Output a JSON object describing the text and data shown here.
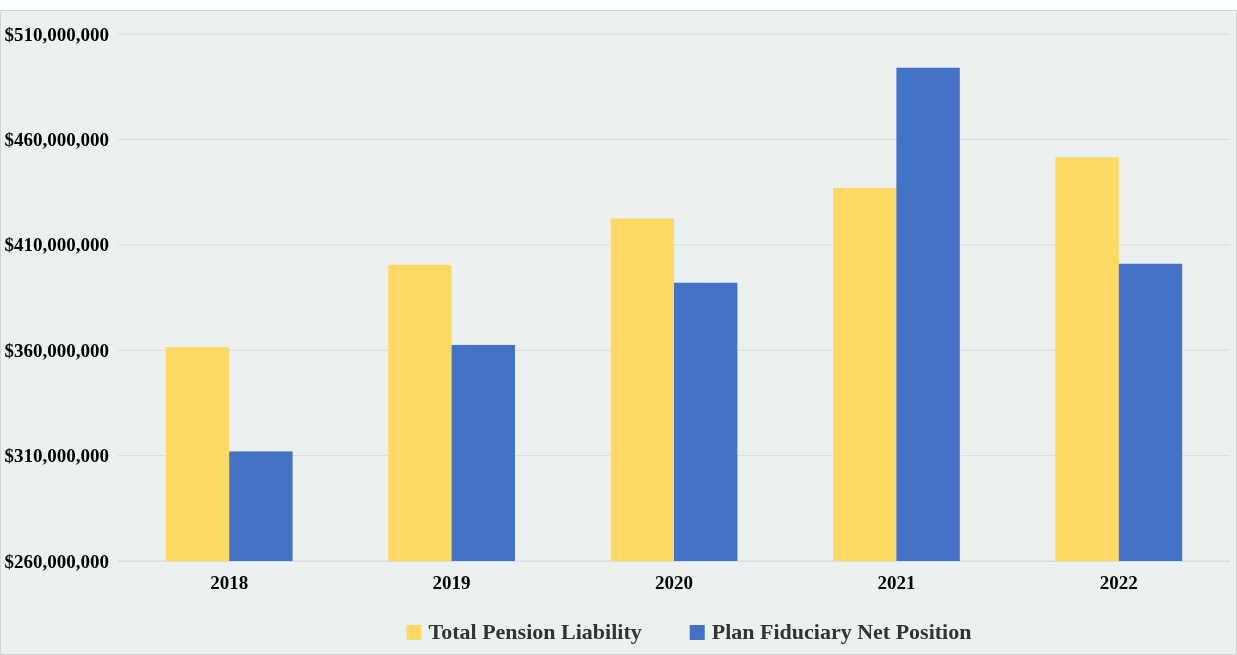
{
  "chart_data": {
    "type": "bar",
    "categories": [
      "2018",
      "2019",
      "2020",
      "2021",
      "2022"
    ],
    "series": [
      {
        "name": "Total Pension Liability",
        "color": "#ffd966",
        "values": [
          361500000,
          400500000,
          422500000,
          437000000,
          451500000
        ]
      },
      {
        "name": "Plan Fiduciary Net Position",
        "color": "#4472c4",
        "values": [
          312000000,
          362500000,
          392000000,
          494000000,
          401000000
        ]
      }
    ],
    "ylim": [
      260000000,
      510000000
    ],
    "yticks": [
      {
        "value": 260000000,
        "label": "$260,000,000"
      },
      {
        "value": 310000000,
        "label": "$310,000,000"
      },
      {
        "value": 360000000,
        "label": "$360,000,000"
      },
      {
        "value": 410000000,
        "label": "$410,000,000"
      },
      {
        "value": 460000000,
        "label": "$460,000,000"
      },
      {
        "value": 510000000,
        "label": "$510,000,000"
      }
    ],
    "grid": "y",
    "legend": "bottom"
  }
}
